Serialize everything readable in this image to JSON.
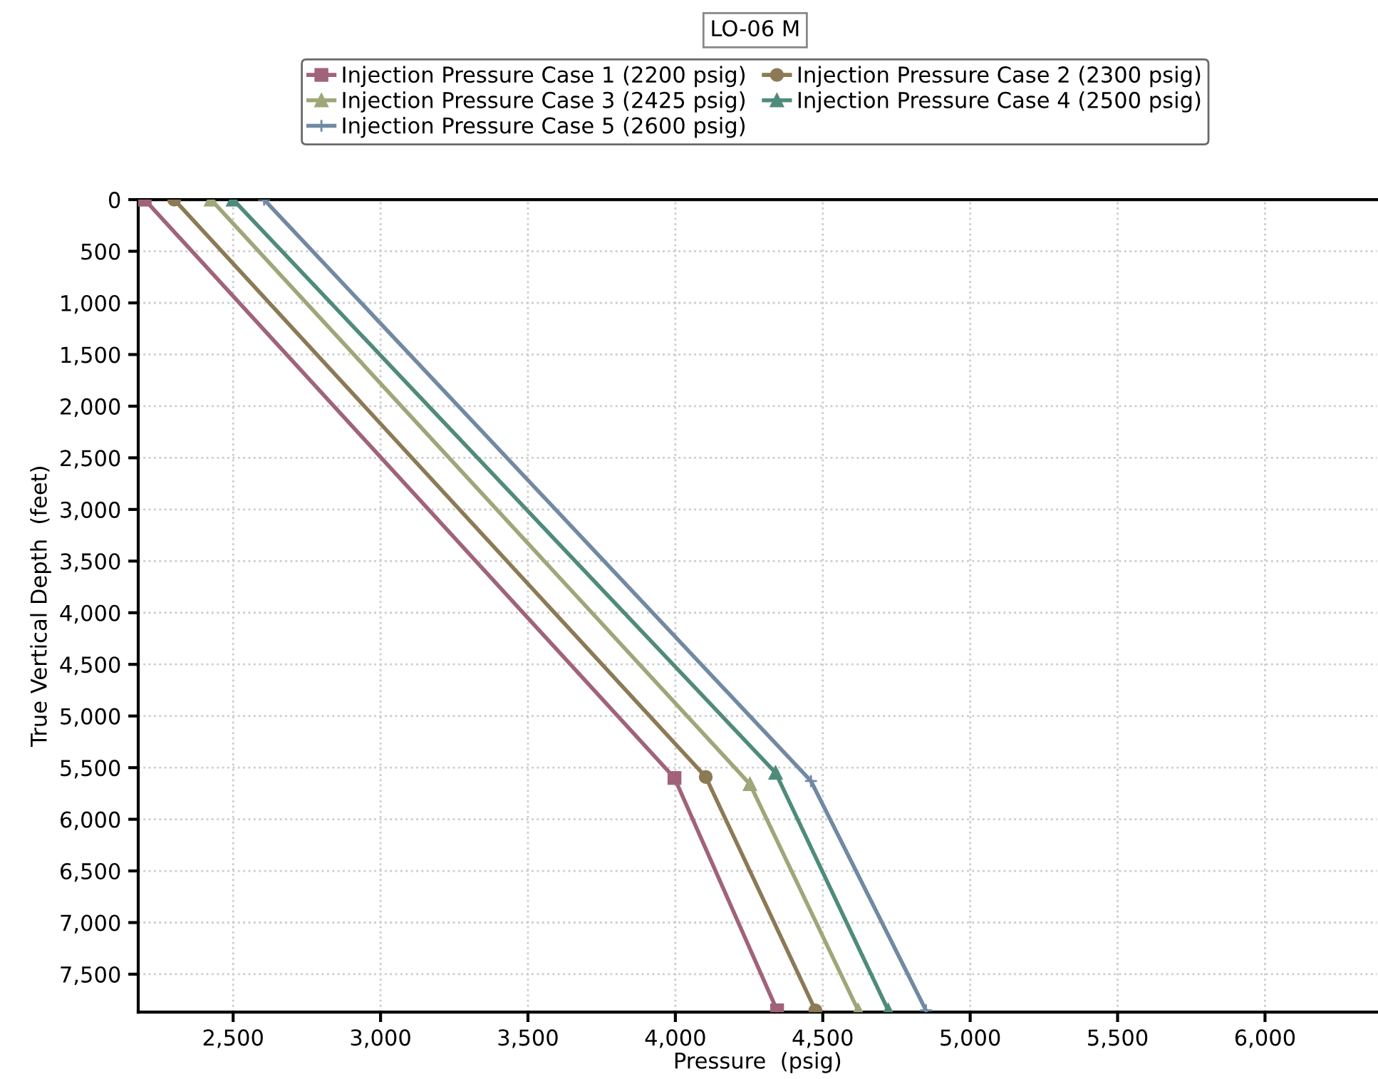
{
  "chart_data": {
    "type": "line",
    "title": "LO-06 M",
    "xlabel": "Pressure  (psig)",
    "ylabel": "True Vertical Depth  (feet)",
    "xlim": [
      2178,
      6380
    ],
    "ylim": [
      7867,
      0
    ],
    "xticks": [
      {
        "value": 2500,
        "label": "2,500"
      },
      {
        "value": 3000,
        "label": "3,000"
      },
      {
        "value": 3500,
        "label": "3,500"
      },
      {
        "value": 4000,
        "label": "4,000"
      },
      {
        "value": 4500,
        "label": "4,500"
      },
      {
        "value": 5000,
        "label": "5,000"
      },
      {
        "value": 5500,
        "label": "5,500"
      },
      {
        "value": 6000,
        "label": "6,000"
      }
    ],
    "yticks": [
      0,
      {
        "value": 500,
        "label": "500"
      },
      {
        "value": 1000,
        "label": "1,000"
      },
      {
        "value": 1500,
        "label": "1,500"
      },
      {
        "value": 2000,
        "label": "2,000"
      },
      {
        "value": 2500,
        "label": "2,500"
      },
      {
        "value": 3000,
        "label": "3,000"
      },
      {
        "value": 3500,
        "label": "3,500"
      },
      {
        "value": 4000,
        "label": "4,000"
      },
      {
        "value": 4500,
        "label": "4,500"
      },
      {
        "value": 5000,
        "label": "5,000"
      },
      {
        "value": 5500,
        "label": "5,500"
      },
      {
        "value": 6000,
        "label": "6,000"
      },
      {
        "value": 6500,
        "label": "6,500"
      },
      {
        "value": 7000,
        "label": "7,000"
      },
      {
        "value": 7500,
        "label": "7,500"
      }
    ],
    "grid": true,
    "legend": "top",
    "series": [
      {
        "name": "Injection Pressure Case 1 (2200 psig)",
        "color": "#a0637a",
        "marker": "square",
        "x": [
          2200,
          3997,
          4345
        ],
        "values": [
          0,
          5600,
          7850
        ]
      },
      {
        "name": "Injection Pressure Case 2 (2300 psig)",
        "color": "#8b7a55",
        "marker": "circle",
        "x": [
          2300,
          4103,
          4475
        ],
        "values": [
          0,
          5590,
          7850
        ]
      },
      {
        "name": "Injection Pressure Case 3 (2425 psig)",
        "color": "#9fa679",
        "marker": "triangle",
        "x": [
          2425,
          4253,
          4620
        ],
        "values": [
          0,
          5660,
          7850
        ]
      },
      {
        "name": "Injection Pressure Case 4 (2500 psig)",
        "color": "#4f8b7b",
        "marker": "triangle",
        "x": [
          2500,
          4340,
          4722
        ],
        "values": [
          0,
          5550,
          7850
        ]
      },
      {
        "name": "Injection Pressure Case 5 (2600 psig)",
        "color": "#7189a3",
        "marker": "cross",
        "x": [
          2605,
          4460,
          4850
        ],
        "values": [
          0,
          5630,
          7850
        ]
      }
    ]
  }
}
